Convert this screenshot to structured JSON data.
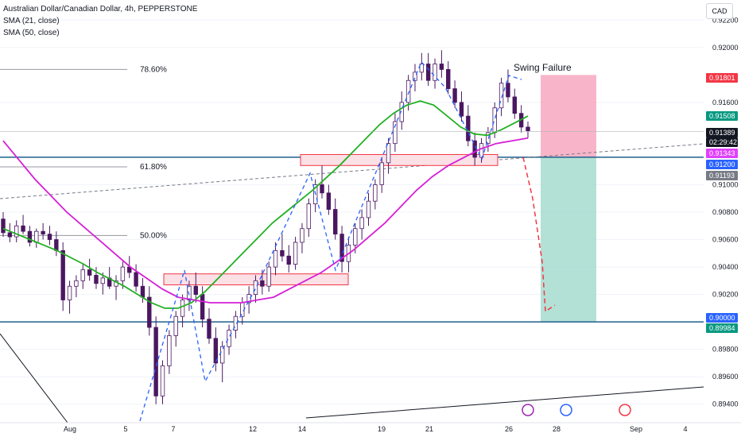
{
  "legend": {
    "symbol": "Australian Dollar/Canadian Dollar, 4h, PEPPERSTONE",
    "sma21": "SMA (21, close)",
    "sma50": "SMA (50, close)"
  },
  "currency": "CAD",
  "chart_data": {
    "type": "candlestick",
    "symbol": "Australian Dollar/Canadian Dollar, 4h, PEPPERSTONE",
    "ylim": [
      0.893,
      0.923
    ],
    "y_ticks": [
      "0.92200",
      "0.92000",
      "0.91600",
      "0.91000",
      "0.90800",
      "0.90600",
      "0.90400",
      "0.90200",
      "0.89800",
      "0.89600",
      "0.89400"
    ],
    "x_ticks": [
      "Aug",
      "5",
      "7",
      "12",
      "14",
      "19",
      "21",
      "26",
      "28",
      "Sep",
      "4"
    ],
    "price_tags": [
      {
        "value": "0.91801",
        "color": "#f23645"
      },
      {
        "value": "0.91508",
        "color": "#089981"
      },
      {
        "value": "0.91389",
        "color": "#131722"
      },
      {
        "value": "02:29:42",
        "color": "#131722"
      },
      {
        "value": "0.91343",
        "color": "#e040fb"
      },
      {
        "value": "0.91200",
        "color": "#2962ff"
      },
      {
        "value": "0.91193",
        "color": "#787b86"
      },
      {
        "value": "0.90000",
        "color": "#2962ff"
      },
      {
        "value": "0.89984",
        "color": "#089981"
      }
    ],
    "fib_levels": [
      {
        "label": "78.60%",
        "value": 0.9184
      },
      {
        "label": "61.80%",
        "value": 0.9113
      },
      {
        "label": "50.00%",
        "value": 0.9063
      }
    ],
    "horizontal_levels": [
      0.912,
      0.9
    ],
    "zones": [
      {
        "from": 0.9035,
        "to": 0.9027
      },
      {
        "from": 0.9122,
        "to": 0.9114
      }
    ],
    "position": {
      "entry": 0.912,
      "stop": 0.918,
      "target": 0.9
    },
    "annotation": "Swing Failure",
    "candles": [
      [
        0.9075,
        0.908,
        0.9062,
        0.9065
      ],
      [
        0.9065,
        0.9072,
        0.9058,
        0.9062
      ],
      [
        0.9062,
        0.9074,
        0.9058,
        0.907
      ],
      [
        0.907,
        0.9078,
        0.9064,
        0.9066
      ],
      [
        0.9066,
        0.907,
        0.9055,
        0.9058
      ],
      [
        0.9058,
        0.9068,
        0.9054,
        0.9066
      ],
      [
        0.9066,
        0.9072,
        0.906,
        0.9064
      ],
      [
        0.9064,
        0.907,
        0.9056,
        0.906
      ],
      [
        0.906,
        0.9066,
        0.9048,
        0.9052
      ],
      [
        0.9052,
        0.9058,
        0.9008,
        0.9016
      ],
      [
        0.9016,
        0.903,
        0.9006,
        0.9026
      ],
      [
        0.9026,
        0.9034,
        0.9018,
        0.903
      ],
      [
        0.903,
        0.9042,
        0.9024,
        0.9038
      ],
      [
        0.9038,
        0.9046,
        0.903,
        0.9034
      ],
      [
        0.9034,
        0.904,
        0.9024,
        0.9028
      ],
      [
        0.9028,
        0.9036,
        0.902,
        0.9032
      ],
      [
        0.9032,
        0.904,
        0.9024,
        0.9026
      ],
      [
        0.9026,
        0.9034,
        0.9016,
        0.903
      ],
      [
        0.903,
        0.9044,
        0.9024,
        0.904
      ],
      [
        0.904,
        0.9048,
        0.9032,
        0.9036
      ],
      [
        0.9036,
        0.9042,
        0.9022,
        0.9026
      ],
      [
        0.9026,
        0.9032,
        0.9014,
        0.9018
      ],
      [
        0.9018,
        0.9026,
        0.899,
        0.8996
      ],
      [
        0.8996,
        0.9004,
        0.894,
        0.8946
      ],
      [
        0.8946,
        0.8972,
        0.894,
        0.8968
      ],
      [
        0.8968,
        0.8994,
        0.8962,
        0.899
      ],
      [
        0.899,
        0.9008,
        0.8982,
        0.9004
      ],
      [
        0.9004,
        0.902,
        0.8996,
        0.9016
      ],
      [
        0.9016,
        0.903,
        0.9008,
        0.9026
      ],
      [
        0.9026,
        0.9036,
        0.9014,
        0.902
      ],
      [
        0.902,
        0.9026,
        0.8996,
        0.9002
      ],
      [
        0.9002,
        0.901,
        0.8984,
        0.8988
      ],
      [
        0.8988,
        0.8996,
        0.8964,
        0.897
      ],
      [
        0.897,
        0.8986,
        0.8956,
        0.8982
      ],
      [
        0.8982,
        0.8998,
        0.8976,
        0.8994
      ],
      [
        0.8994,
        0.9008,
        0.8988,
        0.9004
      ],
      [
        0.9004,
        0.9018,
        0.8998,
        0.9014
      ],
      [
        0.9014,
        0.9026,
        0.9006,
        0.902
      ],
      [
        0.902,
        0.9034,
        0.9014,
        0.903
      ],
      [
        0.903,
        0.9038,
        0.902,
        0.9026
      ],
      [
        0.9026,
        0.9044,
        0.9022,
        0.904
      ],
      [
        0.904,
        0.9058,
        0.9034,
        0.9052
      ],
      [
        0.9052,
        0.9064,
        0.9044,
        0.9048
      ],
      [
        0.9048,
        0.9056,
        0.9036,
        0.9042
      ],
      [
        0.9042,
        0.9062,
        0.9038,
        0.9058
      ],
      [
        0.9058,
        0.9072,
        0.905,
        0.9068
      ],
      [
        0.9068,
        0.909,
        0.9062,
        0.9086
      ],
      [
        0.9086,
        0.9104,
        0.908,
        0.91
      ],
      [
        0.91,
        0.9114,
        0.909,
        0.9094
      ],
      [
        0.9094,
        0.91,
        0.9078,
        0.9082
      ],
      [
        0.9082,
        0.909,
        0.906,
        0.9064
      ],
      [
        0.9064,
        0.907,
        0.9036,
        0.9044
      ],
      [
        0.9044,
        0.9062,
        0.9036,
        0.9056
      ],
      [
        0.9056,
        0.9072,
        0.905,
        0.9068
      ],
      [
        0.9068,
        0.9082,
        0.906,
        0.9076
      ],
      [
        0.9076,
        0.9094,
        0.907,
        0.9088
      ],
      [
        0.9088,
        0.9104,
        0.9082,
        0.91
      ],
      [
        0.91,
        0.912,
        0.9094,
        0.9116
      ],
      [
        0.9116,
        0.9134,
        0.9108,
        0.913
      ],
      [
        0.913,
        0.9152,
        0.9124,
        0.9146
      ],
      [
        0.9146,
        0.9168,
        0.914,
        0.916
      ],
      [
        0.916,
        0.918,
        0.9154,
        0.9176
      ],
      [
        0.9176,
        0.9188,
        0.9168,
        0.9182
      ],
      [
        0.9182,
        0.9196,
        0.9176,
        0.9188
      ],
      [
        0.9188,
        0.9196,
        0.9172,
        0.9176
      ],
      [
        0.9176,
        0.9192,
        0.917,
        0.9188
      ],
      [
        0.9188,
        0.9198,
        0.9178,
        0.9184
      ],
      [
        0.9184,
        0.919,
        0.9166,
        0.917
      ],
      [
        0.917,
        0.9176,
        0.9156,
        0.916
      ],
      [
        0.916,
        0.9168,
        0.9146,
        0.915
      ],
      [
        0.915,
        0.9158,
        0.9128,
        0.9132
      ],
      [
        0.9132,
        0.9138,
        0.9114,
        0.912
      ],
      [
        0.912,
        0.9134,
        0.9116,
        0.913
      ],
      [
        0.913,
        0.9142,
        0.9124,
        0.9138
      ],
      [
        0.9138,
        0.916,
        0.9134,
        0.9156
      ],
      [
        0.9156,
        0.9178,
        0.915,
        0.9174
      ],
      [
        0.9174,
        0.9184,
        0.916,
        0.9164
      ],
      [
        0.9164,
        0.917,
        0.9148,
        0.9152
      ],
      [
        0.9152,
        0.9158,
        0.9138,
        0.9142
      ],
      [
        0.9142,
        0.9146,
        0.9134,
        0.9139
      ]
    ],
    "sma21": [
      0.9068,
      0.9064,
      0.906,
      0.9056,
      0.9052,
      0.9047,
      0.9042,
      0.9036,
      0.9031,
      0.9026,
      0.902,
      0.9014,
      0.901,
      0.901,
      0.9014,
      0.9022,
      0.9032,
      0.9042,
      0.9052,
      0.9062,
      0.9072,
      0.908,
      0.9088,
      0.9096,
      0.9105,
      0.9114,
      0.9124,
      0.9134,
      0.9144,
      0.9152,
      0.9158,
      0.9161,
      0.9158,
      0.915,
      0.9142,
      0.9137,
      0.9136,
      0.914,
      0.9145,
      0.915
    ],
    "sma50": [
      0.9132,
      0.9118,
      0.9104,
      0.9092,
      0.908,
      0.907,
      0.906,
      0.905,
      0.904,
      0.9032,
      0.9024,
      0.9018,
      0.9016,
      0.9014,
      0.9014,
      0.9014,
      0.9016,
      0.9018,
      0.9024,
      0.903,
      0.9036,
      0.9044,
      0.9052,
      0.9062,
      0.9072,
      0.9084,
      0.9096,
      0.9106,
      0.9114,
      0.912,
      0.9126,
      0.913,
      0.9132,
      0.9134
    ]
  }
}
